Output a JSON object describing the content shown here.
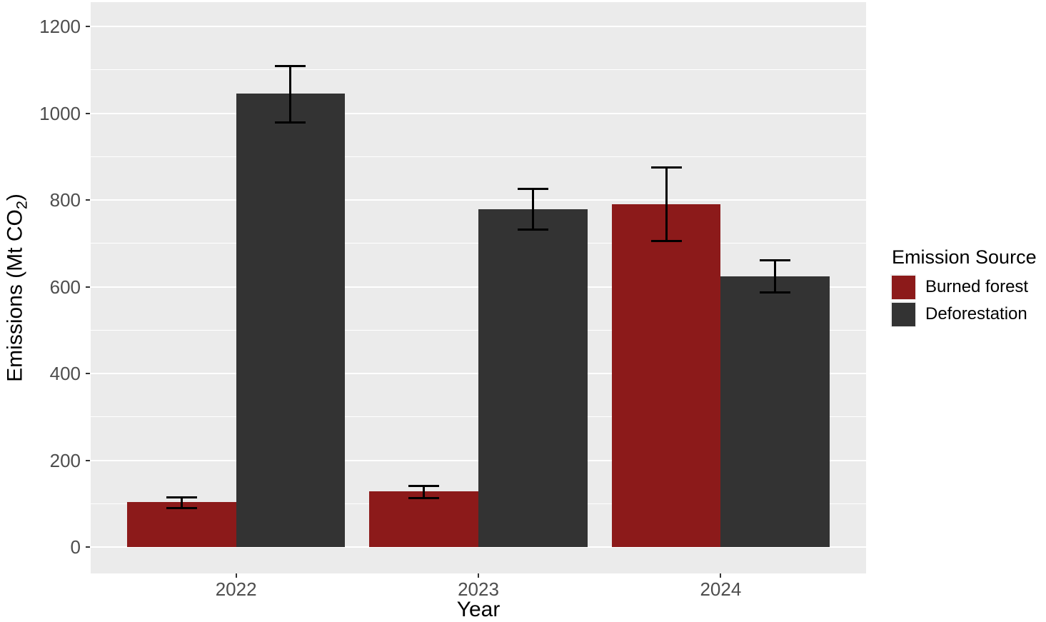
{
  "chart_data": {
    "type": "bar",
    "bar_layout": "grouped-dodged",
    "title": "",
    "xlabel": "Year",
    "ylabel": "Emissions (Mt CO2)",
    "ylabel_rich": {
      "main": "Emissions (Mt CO",
      "subscript": "2",
      "end": ")"
    },
    "categories": [
      "2022",
      "2023",
      "2024"
    ],
    "series": [
      {
        "name": "Burned forest",
        "color": "#8C1A1A",
        "values": [
          103,
          128,
          790
        ],
        "error_low": [
          91,
          114,
          706
        ],
        "error_high": [
          115,
          142,
          876
        ]
      },
      {
        "name": "Deforestation",
        "color": "#333333",
        "values": [
          1045,
          779,
          624
        ],
        "error_low": [
          980,
          732,
          588
        ],
        "error_high": [
          1110,
          826,
          662
        ]
      }
    ],
    "error_bars": true,
    "y_ticks": [
      0,
      200,
      400,
      600,
      800,
      1000,
      1200
    ],
    "ylim": [
      -60,
      1253
    ],
    "grid": {
      "major_every": 200,
      "minor_every": 100
    },
    "legend": {
      "title": "Emission Source",
      "position": "right"
    }
  },
  "style": {
    "page_background": "#FFFFFF",
    "panel_background": "#EBEBEB",
    "grid_color": "#FFFFFF",
    "tick_label_color": "#4D4D4D",
    "axis_title_color": "#000000",
    "error_bar_color": "#000000"
  }
}
